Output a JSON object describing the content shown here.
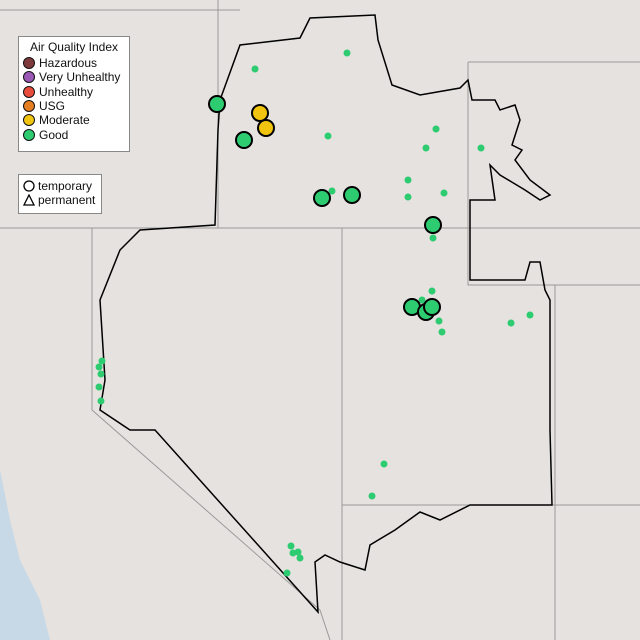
{
  "legend": {
    "title": "Air Quality Index",
    "categories": [
      {
        "label": "Hazardous",
        "color": "#7e3a3a"
      },
      {
        "label": "Very Unhealthy",
        "color": "#9b59b6"
      },
      {
        "label": "Unhealthy",
        "color": "#e74c3c"
      },
      {
        "label": "USG",
        "color": "#e67e22"
      },
      {
        "label": "Moderate",
        "color": "#f1c40f"
      },
      {
        "label": "Good",
        "color": "#2ecc71"
      }
    ]
  },
  "shape_legend": {
    "items": [
      {
        "label": "temporary",
        "icon": "circle-icon"
      },
      {
        "label": "permanent",
        "icon": "triangle-icon"
      }
    ]
  }
}
